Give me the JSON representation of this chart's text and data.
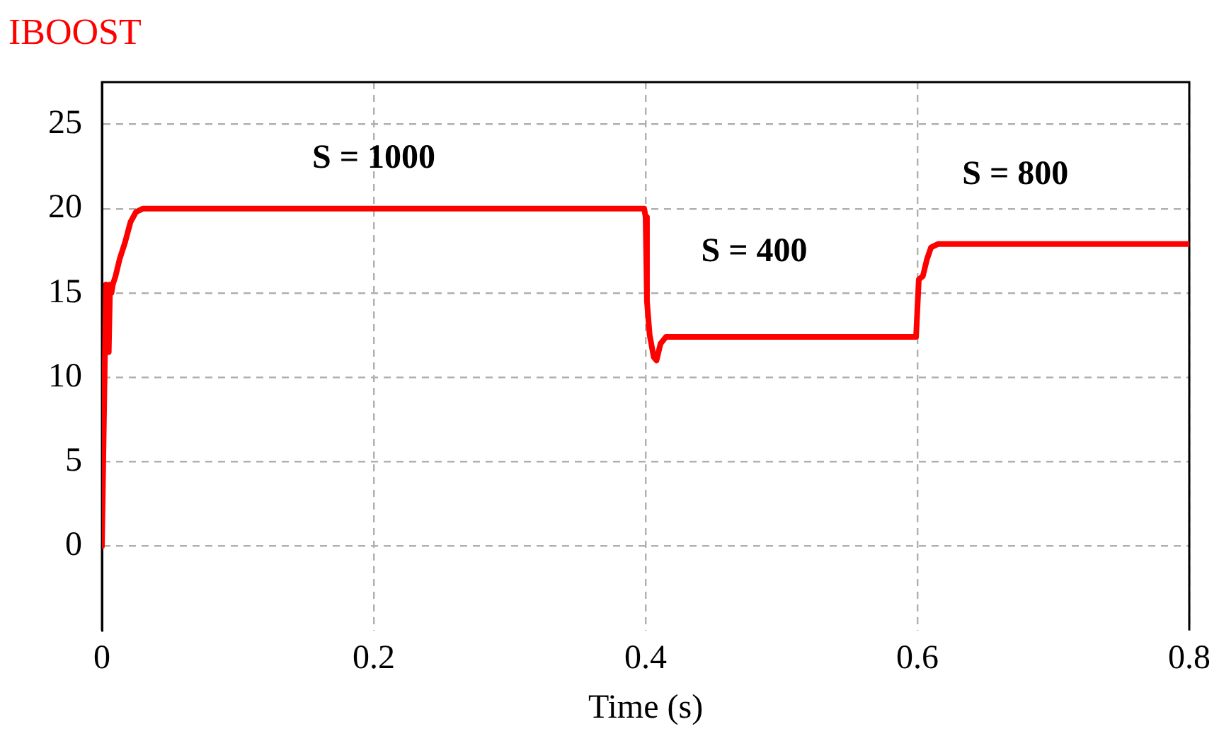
{
  "chart_data": {
    "type": "line",
    "title": "IBOOST",
    "xlabel": "Time (s)",
    "x": [
      0,
      0.001,
      0.003,
      0.004,
      0.005,
      0.006,
      0.007,
      0.008,
      0.01,
      0.013,
      0.017,
      0.021,
      0.025,
      0.03,
      0.1,
      0.2,
      0.3,
      0.399,
      0.4,
      0.401,
      0.403,
      0.406,
      0.408,
      0.411,
      0.415,
      0.5,
      0.599,
      0.6,
      0.601,
      0.604,
      0.607,
      0.61,
      0.615,
      0.7,
      0.8
    ],
    "series": [
      {
        "name": null,
        "color": "#ff0000",
        "values": [
          0,
          0,
          15.5,
          13,
          11.5,
          15.5,
          15,
          15.5,
          16,
          17,
          18,
          19.2,
          19.8,
          20,
          20,
          20,
          20,
          20,
          19.5,
          14.5,
          12.5,
          11.2,
          11,
          12,
          12.4,
          12.4,
          12.4,
          12.4,
          15.8,
          16,
          17,
          17.7,
          17.9,
          17.9,
          17.9
        ]
      }
    ],
    "xlim": [
      0,
      0.8
    ],
    "xticks": [
      0,
      0.2,
      0.4,
      0.6,
      0.8
    ],
    "ylim": [
      -5,
      27.5
    ],
    "yticks": [
      0,
      5,
      10,
      15,
      20,
      25
    ],
    "grid": true,
    "legend": false,
    "marker": "none",
    "line_style": "solid",
    "annotations": [
      "S = 1000",
      "S = 400",
      "S = 800"
    ]
  }
}
